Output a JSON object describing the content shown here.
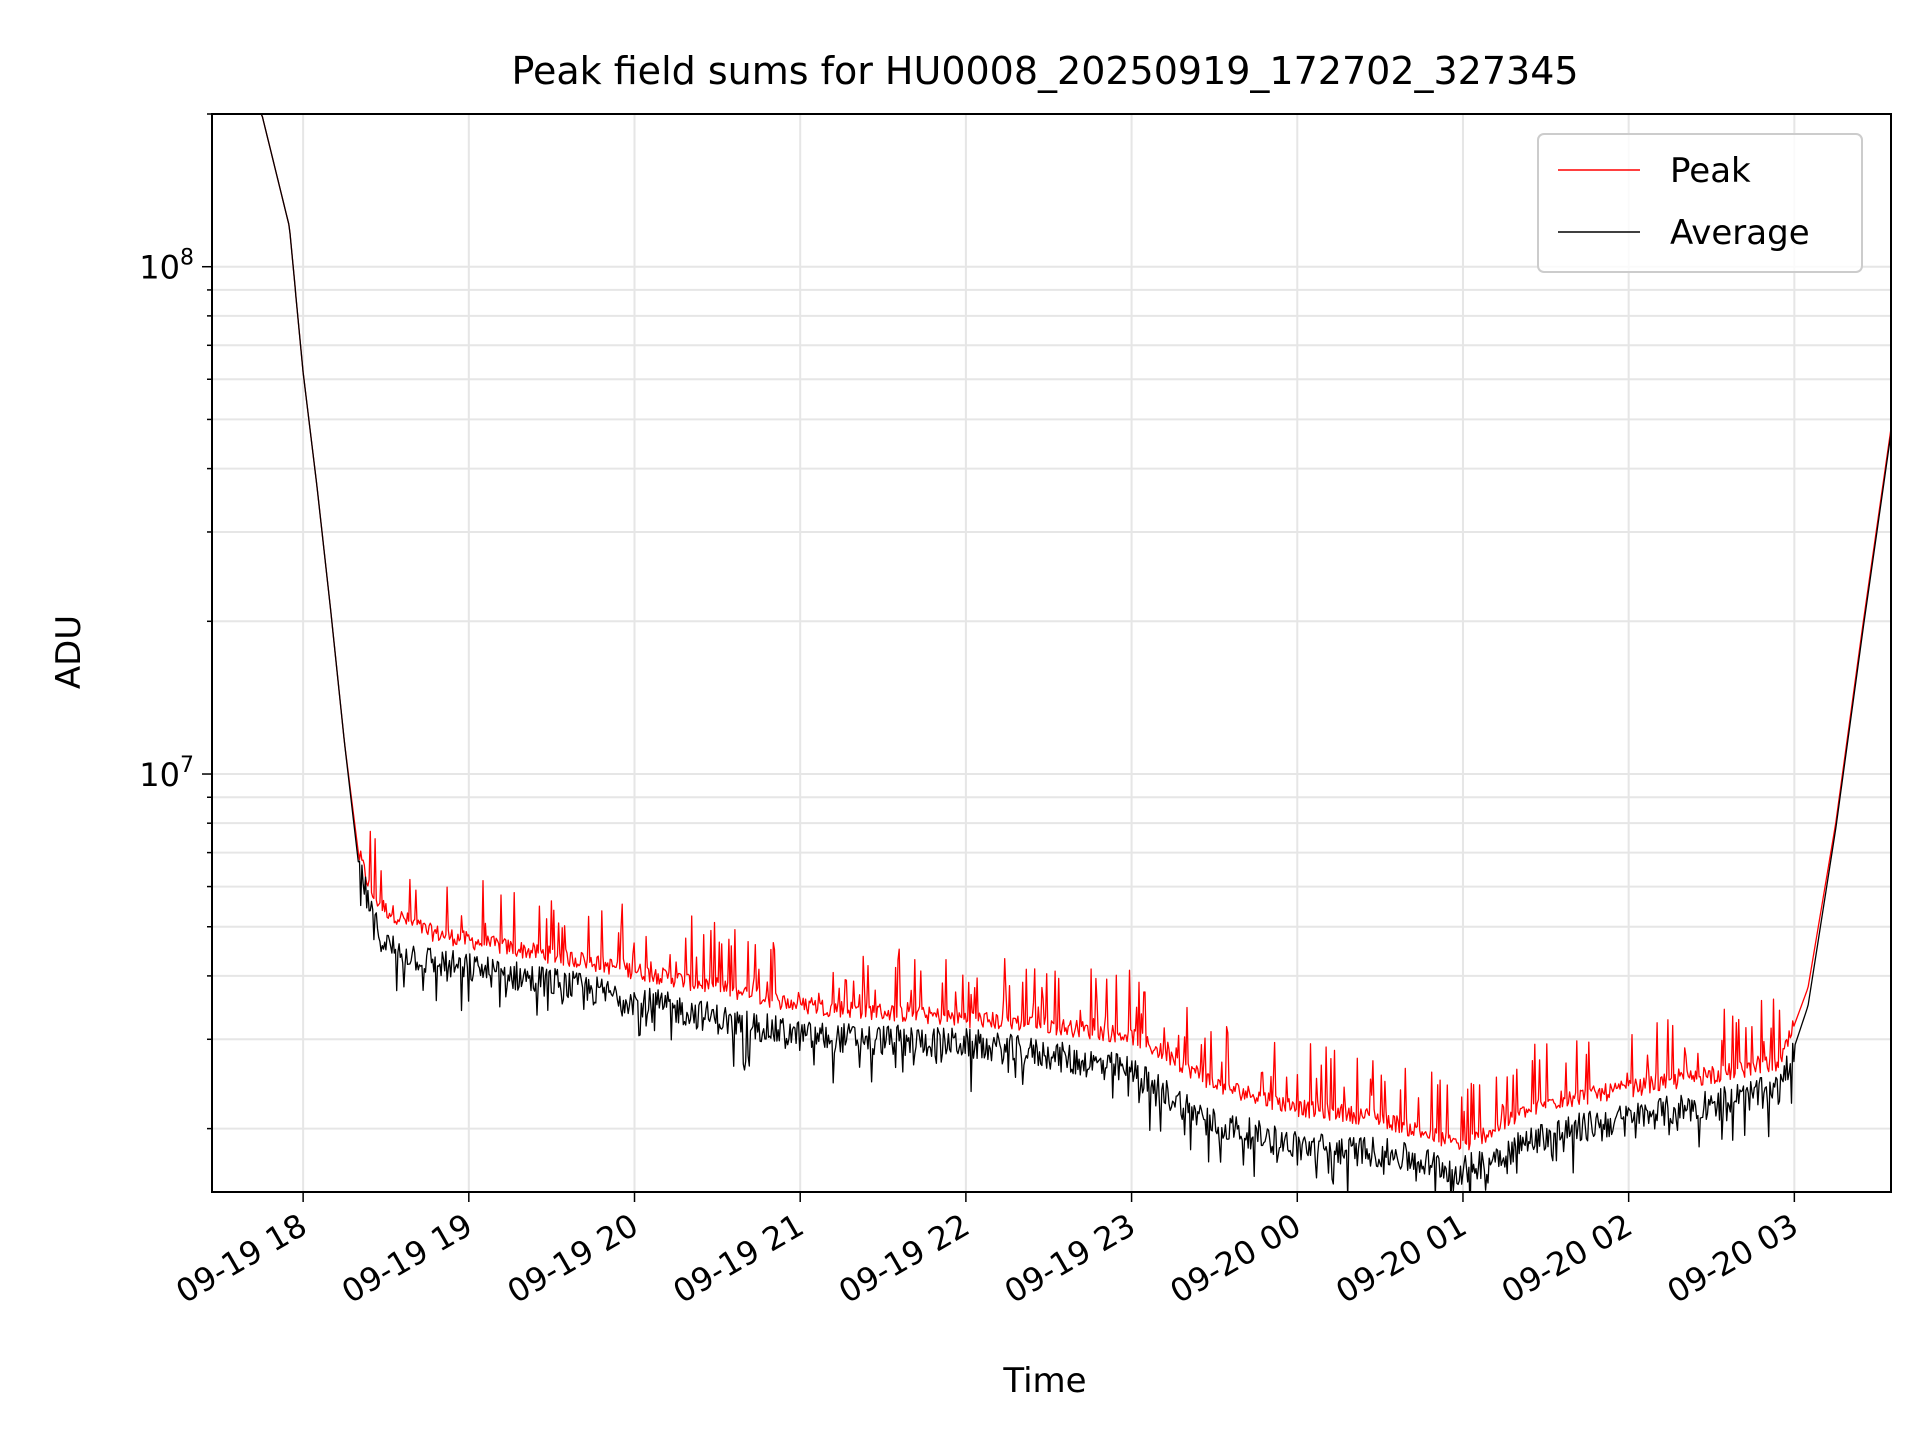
{
  "chart_data": {
    "type": "line",
    "title": "Peak field sums for HU0008_20250919_172702_327345",
    "xlabel": "Time",
    "ylabel": "ADU",
    "yscale": "log",
    "ylim": [
      1500000,
      200000000
    ],
    "xlim": [
      "2025-09-19 17:27",
      "2025-09-20 03:35"
    ],
    "xticks": [
      "09-19 18",
      "09-19 19",
      "09-19 20",
      "09-19 21",
      "09-19 22",
      "09-19 23",
      "09-20 00",
      "09-20 01",
      "09-20 02",
      "09-20 03"
    ],
    "yticks": [
      {
        "base": "10",
        "exponent": "7",
        "value": 10000000
      },
      {
        "base": "10",
        "exponent": "8",
        "value": 100000000
      }
    ],
    "grid": true,
    "legend_position": "top-right",
    "series": [
      {
        "name": "Peak",
        "color": "#ff0000",
        "x": [
          "2025-09-19 17:27",
          "2025-09-19 17:45",
          "2025-09-19 17:55",
          "2025-09-19 18:00",
          "2025-09-19 18:05",
          "2025-09-19 18:10",
          "2025-09-19 18:15",
          "2025-09-19 18:20",
          "2025-09-19 18:25",
          "2025-09-19 18:30",
          "2025-09-19 18:45",
          "2025-09-19 19:00",
          "2025-09-19 19:30",
          "2025-09-19 20:00",
          "2025-09-19 20:30",
          "2025-09-19 21:00",
          "2025-09-19 21:30",
          "2025-09-19 22:00",
          "2025-09-19 22:30",
          "2025-09-19 23:00",
          "2025-09-19 23:15",
          "2025-09-19 23:30",
          "2025-09-20 00:00",
          "2025-09-20 00:30",
          "2025-09-20 01:00",
          "2025-09-20 01:15",
          "2025-09-20 01:30",
          "2025-09-20 02:00",
          "2025-09-20 02:30",
          "2025-09-20 02:55",
          "2025-09-20 03:05",
          "2025-09-20 03:15",
          "2025-09-20 03:25",
          "2025-09-20 03:35"
        ],
        "y": [
          200000000,
          200000000,
          120000000,
          62000000,
          37000000,
          21000000,
          11500000,
          7000000,
          5800000,
          5400000,
          4900000,
          4700000,
          4400000,
          4100000,
          3800000,
          3500000,
          3400000,
          3300000,
          3200000,
          3050000,
          2750000,
          2450000,
          2200000,
          2100000,
          1850000,
          2050000,
          2250000,
          2400000,
          2550000,
          2700000,
          3800000,
          8000000,
          20000000,
          48000000
        ]
      },
      {
        "name": "Average",
        "color": "#000000",
        "x": [
          "2025-09-19 17:27",
          "2025-09-19 17:45",
          "2025-09-19 17:55",
          "2025-09-19 18:00",
          "2025-09-19 18:05",
          "2025-09-19 18:10",
          "2025-09-19 18:15",
          "2025-09-19 18:20",
          "2025-09-19 18:25",
          "2025-09-19 18:30",
          "2025-09-19 18:45",
          "2025-09-19 19:00",
          "2025-09-19 19:30",
          "2025-09-19 20:00",
          "2025-09-19 20:30",
          "2025-09-19 21:00",
          "2025-09-19 21:30",
          "2025-09-19 22:00",
          "2025-09-19 22:30",
          "2025-09-19 23:00",
          "2025-09-19 23:15",
          "2025-09-19 23:30",
          "2025-09-20 00:00",
          "2025-09-20 00:30",
          "2025-09-20 01:00",
          "2025-09-20 01:15",
          "2025-09-20 01:30",
          "2025-09-20 02:00",
          "2025-09-20 02:30",
          "2025-09-20 02:55",
          "2025-09-20 03:05",
          "2025-09-20 03:15",
          "2025-09-20 03:25",
          "2025-09-20 03:35"
        ],
        "y": [
          200000000,
          200000000,
          120000000,
          62000000,
          37000000,
          21000000,
          11500000,
          6700000,
          5200000,
          4600000,
          4300000,
          4150000,
          3900000,
          3600000,
          3300000,
          3050000,
          3000000,
          2950000,
          2800000,
          2600000,
          2300000,
          2050000,
          1850000,
          1800000,
          1650000,
          1800000,
          1950000,
          2100000,
          2250000,
          2400000,
          3500000,
          7800000,
          19500000,
          47000000
        ]
      }
    ]
  }
}
